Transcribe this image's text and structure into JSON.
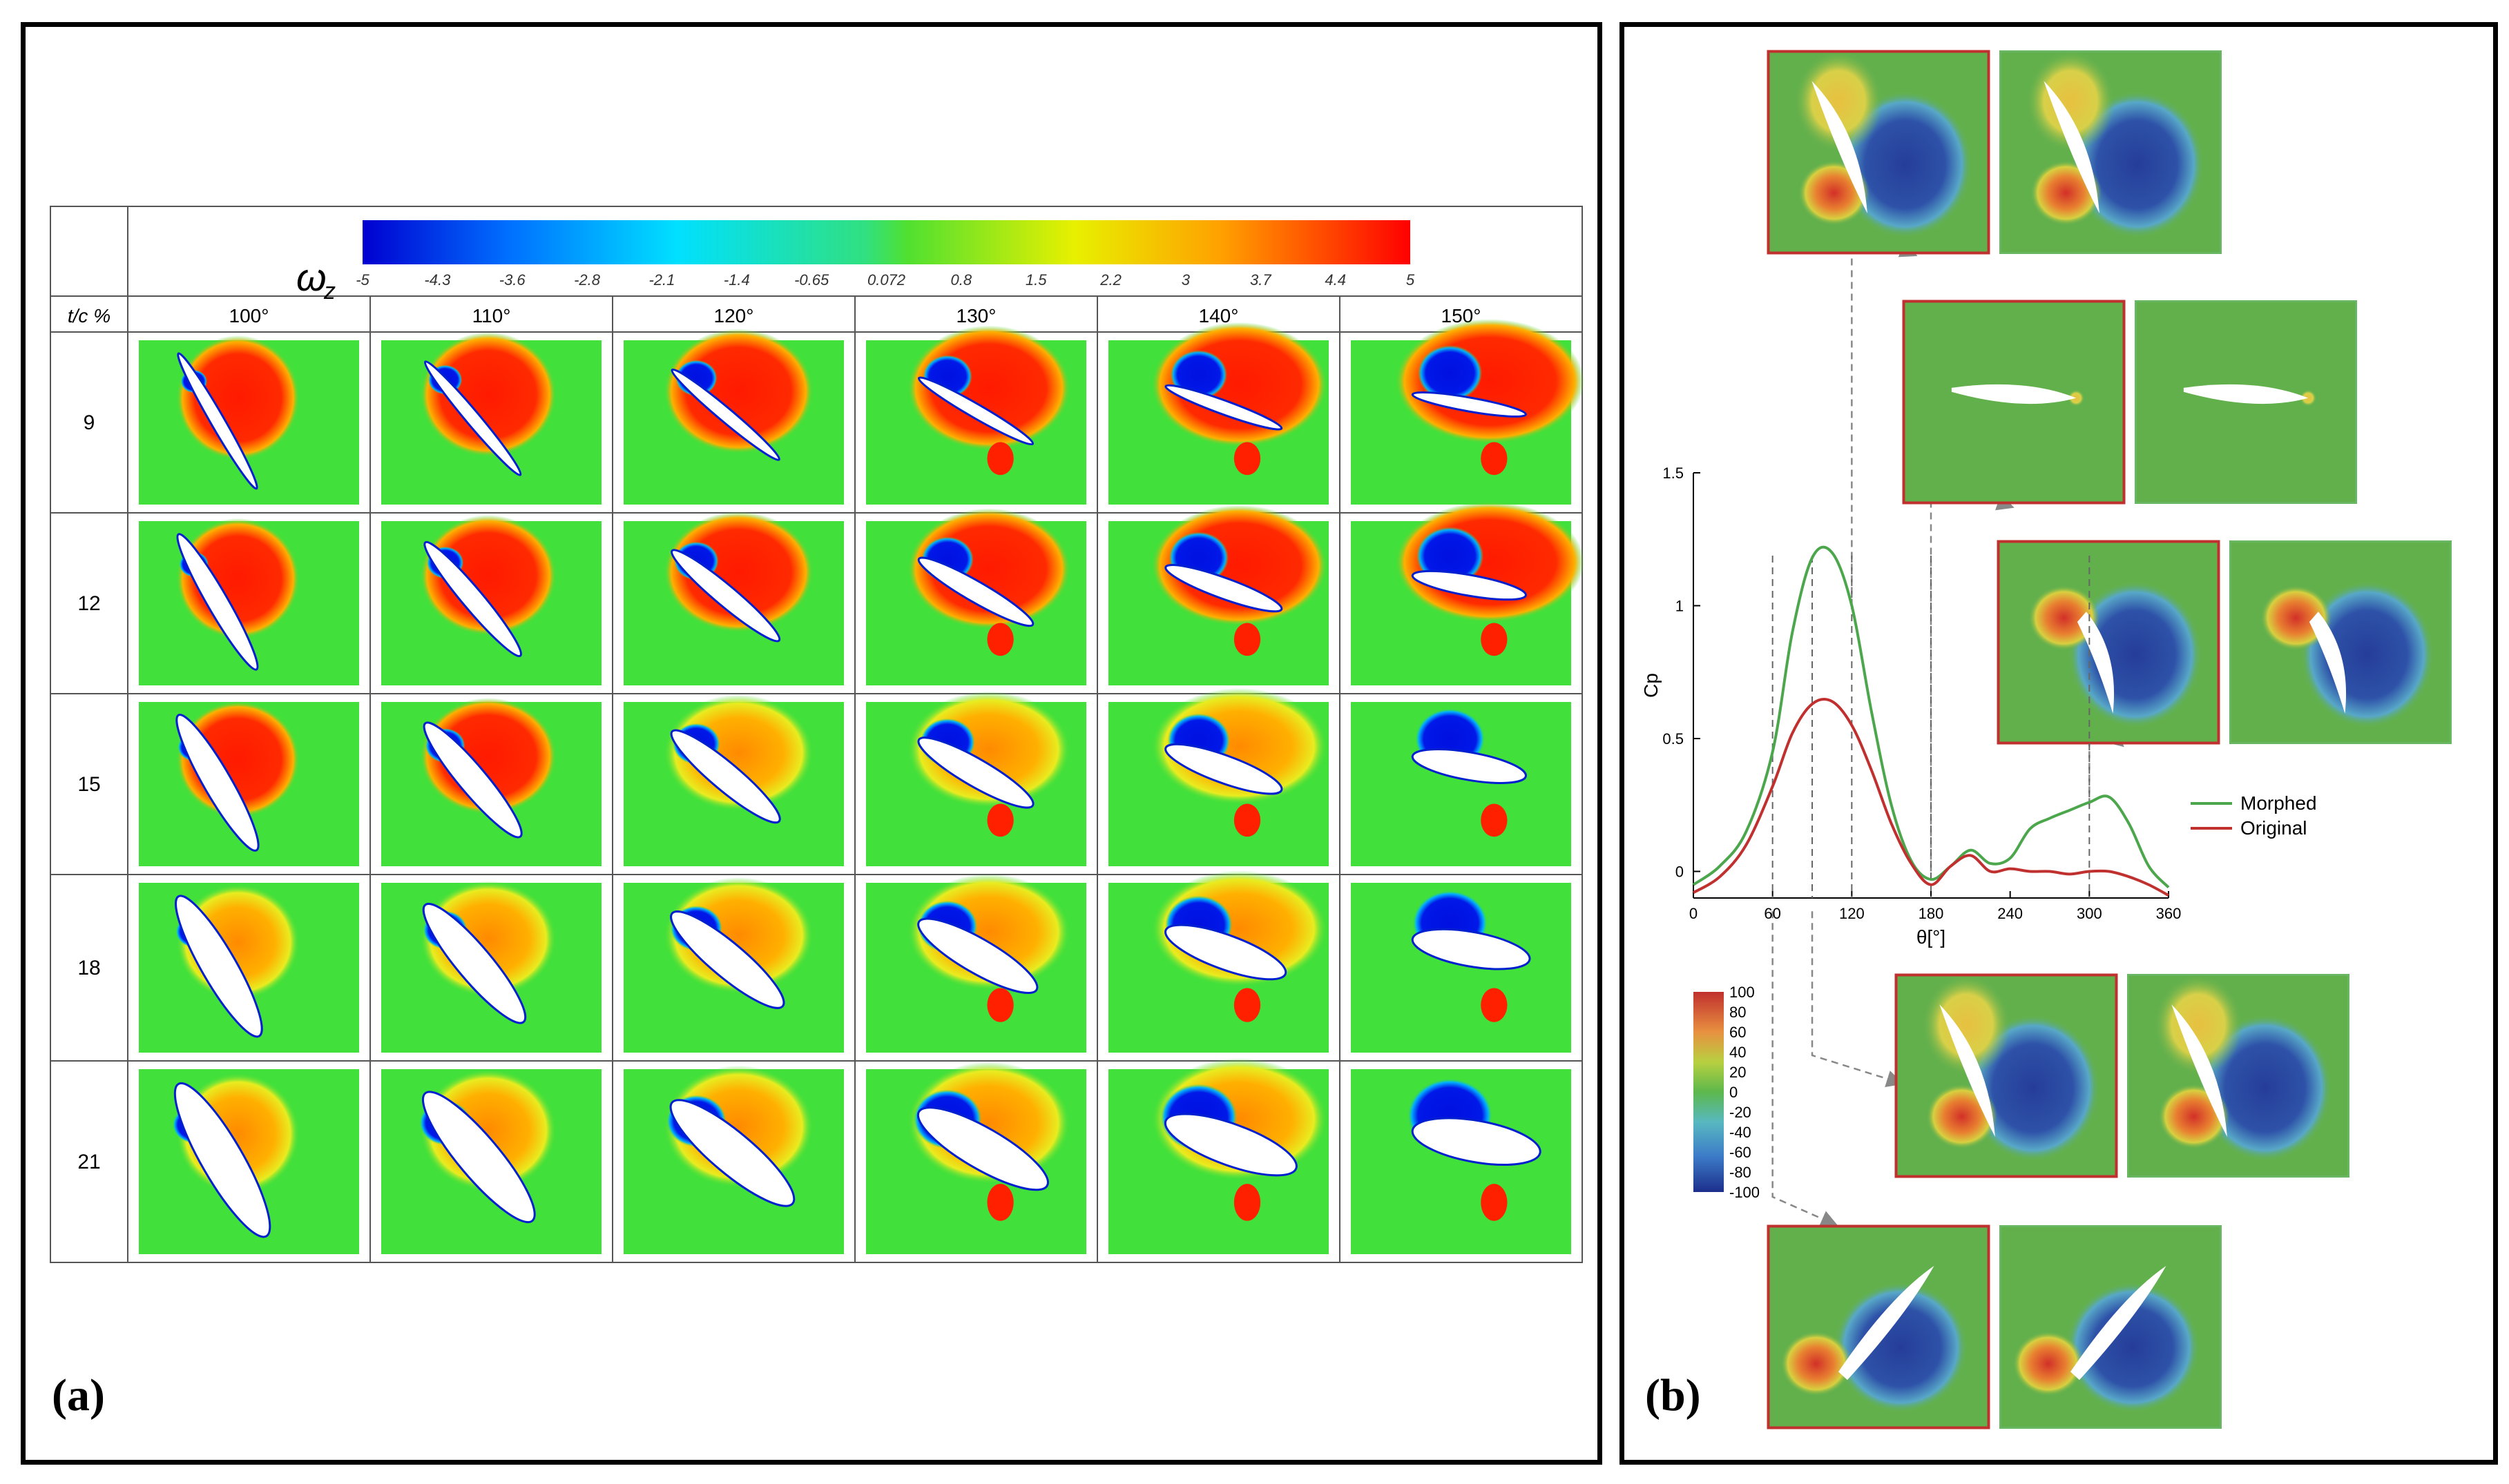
{
  "panel_a": {
    "label": "(a)",
    "colorbar": {
      "symbol": "ω",
      "subscript": "z",
      "ticks": [
        "-5",
        "-4.3",
        "-3.6",
        "-2.8",
        "-2.1",
        "-1.4",
        "-0.65",
        "0.072",
        "0.8",
        "1.5",
        "2.2",
        "3",
        "3.7",
        "4.4",
        "5"
      ]
    },
    "row_header": "t/c %",
    "columns": [
      "100°",
      "110°",
      "120°",
      "130°",
      "140°",
      "150°"
    ],
    "rows": [
      "9",
      "12",
      "15",
      "18",
      "21"
    ]
  },
  "panel_b": {
    "label": "(b)",
    "chart_data": {
      "type": "line",
      "xlabel": "θ[°]",
      "ylabel": "Cp",
      "xlim": [
        0,
        360
      ],
      "ylim": [
        -0.1,
        1.5
      ],
      "x_ticks": [
        "0",
        "60",
        "120",
        "180",
        "240",
        "300",
        "360"
      ],
      "y_ticks": [
        "0",
        "0.5",
        "1",
        "1.5"
      ],
      "series": [
        {
          "name": "Morphed",
          "color": "#4ca64c",
          "x": [
            0,
            20,
            40,
            60,
            75,
            90,
            105,
            120,
            135,
            150,
            165,
            180,
            195,
            210,
            225,
            240,
            255,
            270,
            285,
            300,
            315,
            330,
            345,
            360
          ],
          "y": [
            -0.05,
            0.02,
            0.15,
            0.45,
            0.9,
            1.18,
            1.2,
            1.0,
            0.6,
            0.25,
            0.04,
            -0.03,
            0.02,
            0.08,
            0.03,
            0.05,
            0.16,
            0.2,
            0.23,
            0.26,
            0.28,
            0.18,
            0.02,
            -0.06
          ]
        },
        {
          "name": "Original",
          "color": "#c0302e",
          "x": [
            0,
            20,
            40,
            60,
            75,
            90,
            105,
            120,
            135,
            150,
            165,
            180,
            195,
            210,
            225,
            240,
            255,
            270,
            285,
            300,
            315,
            330,
            345,
            360
          ],
          "y": [
            -0.08,
            -0.02,
            0.1,
            0.32,
            0.52,
            0.63,
            0.64,
            0.55,
            0.38,
            0.18,
            0.03,
            -0.05,
            0.02,
            0.06,
            0.0,
            0.01,
            0.0,
            0.0,
            -0.01,
            0.0,
            0.0,
            -0.02,
            -0.05,
            -0.09
          ]
        }
      ],
      "legend": [
        "Morphed",
        "Original"
      ],
      "legend_placement": "right"
    },
    "colorbar": {
      "ticks": [
        "100",
        "80",
        "60",
        "40",
        "20",
        "0",
        "-20",
        "-40",
        "-60",
        "-80",
        "-100"
      ]
    }
  }
}
